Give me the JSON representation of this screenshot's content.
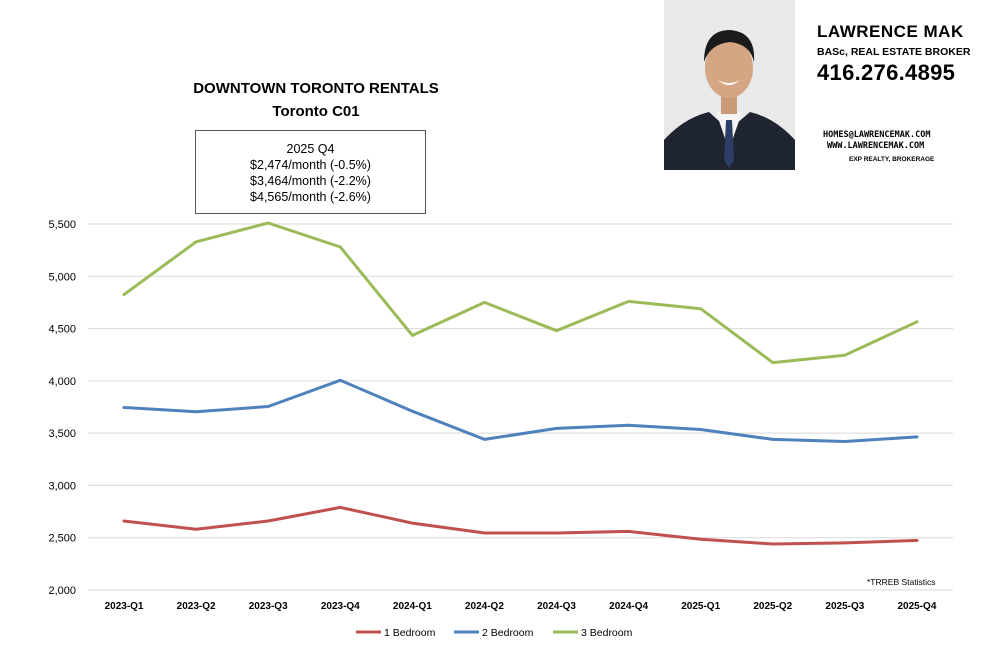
{
  "chart_data": {
    "type": "line",
    "title": "DOWNTOWN TORONTO RENTALS",
    "subtitle": "Toronto C01",
    "categories": [
      "2023-Q1",
      "2023-Q2",
      "2023-Q3",
      "2023-Q4",
      "2024-Q1",
      "2024-Q2",
      "2024-Q3",
      "2024-Q4",
      "2025-Q1",
      "2025-Q2",
      "2025-Q3",
      "2025-Q4"
    ],
    "series": [
      {
        "name": "1 Bedroom",
        "color": "#c0504d",
        "values": [
          2660,
          2580,
          2660,
          2790,
          2640,
          2545,
          2545,
          2560,
          2485,
          2440,
          2450,
          2474
        ]
      },
      {
        "name": "2 Bedroom",
        "color": "#4f81bd",
        "values": [
          3745,
          3705,
          3755,
          4005,
          3710,
          3440,
          3545,
          3575,
          3535,
          3440,
          3420,
          3464
        ]
      },
      {
        "name": "3 Bedroom",
        "color": "#9bbb59",
        "values": [
          4825,
          5330,
          5510,
          5280,
          4435,
          4750,
          4480,
          4760,
          4690,
          4175,
          4245,
          4565
        ]
      }
    ],
    "yticks": [
      "2,000",
      "2,500",
      "3,000",
      "3,500",
      "4,000",
      "4,500",
      "5,000",
      "5,500"
    ],
    "ylim": [
      2000,
      5500
    ],
    "grid": true,
    "legend_position": "bottom"
  },
  "callout": {
    "period": "2025 Q4",
    "line1": "$2,474/month (-0.5%)",
    "line2": "$3,464/month (-2.2%)",
    "line3": "$4,565/month (-2.6%)"
  },
  "agent": {
    "name": "LAWRENCE MAK",
    "credentials": "BASc, REAL ESTATE BROKER",
    "phone": "416.276.4895",
    "email": "HOMES@LAWRENCEMAK.COM",
    "website": "WWW.LAWRENCEMAK.COM",
    "brokerage": "EXP REALTY, BROKERAGE"
  },
  "source_note": "*TRREB Statistics"
}
